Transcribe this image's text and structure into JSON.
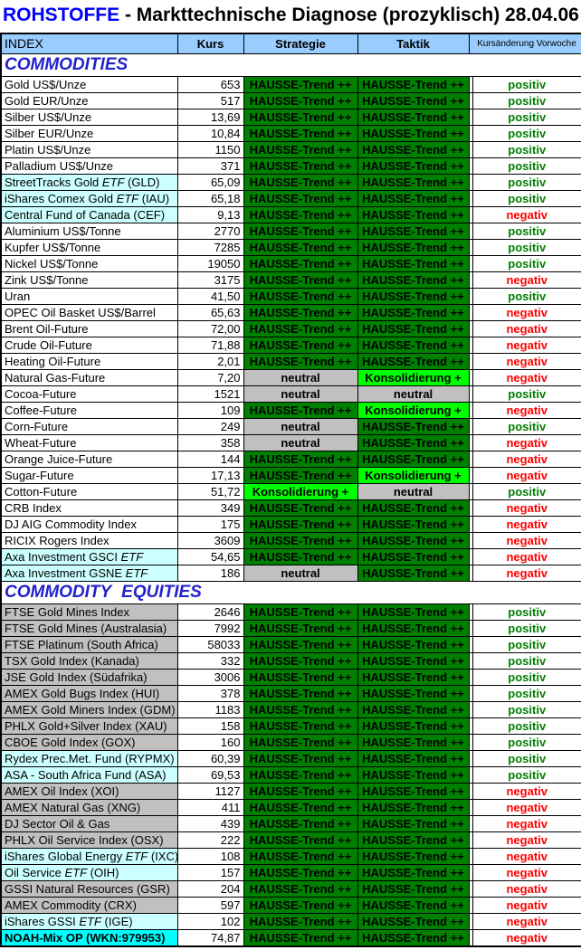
{
  "title": {
    "highlight": "ROHSTOFFE",
    "rest": " - Markttechnische Diagnose (prozyklisch) 28.04.06"
  },
  "header": {
    "index": "INDEX",
    "kurs": "Kurs",
    "strategie": "Strategie",
    "taktik": "Taktik",
    "vorwoche": "Kursänderung Vorwoche"
  },
  "colors": {
    "title_accent": "#0000FF",
    "section_label": "#2222CC",
    "header_bg": "#99CCFF",
    "hausse_bg": "#008000",
    "konsolidierung_bg": "#00FF00",
    "neutral_bg": "#C0C0C0",
    "etf_row_bg": "#CCFFFF",
    "equity_row_bg": "#C0C0C0",
    "noah_row_bg": "#00FFFF",
    "positiv": "#008000",
    "negativ": "#FF0000"
  },
  "status_styles": {
    "HAUSSE-Trend ++": "hausse",
    "neutral": "neutral",
    "Konsolidierung +": "konsol"
  },
  "change_styles": {
    "positiv": "pos",
    "negativ": "neg"
  },
  "sections": [
    {
      "label": "COMMODITIES",
      "rows": [
        {
          "name": "Gold US$/Unze",
          "bg": "plain",
          "kurs": "653",
          "strategie": "HAUSSE-Trend ++",
          "taktik": "HAUSSE-Trend ++",
          "vorwoche": "positiv"
        },
        {
          "name": "Gold EUR/Unze",
          "bg": "plain",
          "kurs": "517",
          "strategie": "HAUSSE-Trend ++",
          "taktik": "HAUSSE-Trend ++",
          "vorwoche": "positiv"
        },
        {
          "name": "Silber US$/Unze",
          "bg": "plain",
          "kurs": "13,69",
          "strategie": "HAUSSE-Trend ++",
          "taktik": "HAUSSE-Trend ++",
          "vorwoche": "positiv"
        },
        {
          "name": "Silber EUR/Unze",
          "bg": "plain",
          "kurs": "10,84",
          "strategie": "HAUSSE-Trend ++",
          "taktik": "HAUSSE-Trend ++",
          "vorwoche": "positiv"
        },
        {
          "name": "Platin US$/Unze",
          "bg": "plain",
          "kurs": "1150",
          "strategie": "HAUSSE-Trend ++",
          "taktik": "HAUSSE-Trend ++",
          "vorwoche": "positiv"
        },
        {
          "name": "Palladium US$/Unze",
          "bg": "plain",
          "kurs": "371",
          "strategie": "HAUSSE-Trend ++",
          "taktik": "HAUSSE-Trend ++",
          "vorwoche": "positiv"
        },
        {
          "name": "StreetTracks Gold ETF (GLD)",
          "bg": "etf",
          "kurs": "65,09",
          "strategie": "HAUSSE-Trend ++",
          "taktik": "HAUSSE-Trend ++",
          "vorwoche": "positiv"
        },
        {
          "name": "iShares Comex Gold ETF (IAU)",
          "bg": "etf",
          "kurs": "65,18",
          "strategie": "HAUSSE-Trend ++",
          "taktik": "HAUSSE-Trend ++",
          "vorwoche": "positiv"
        },
        {
          "name": "Central Fund of Canada (CEF)",
          "bg": "etf",
          "kurs": "9,13",
          "strategie": "HAUSSE-Trend ++",
          "taktik": "HAUSSE-Trend ++",
          "vorwoche": "negativ"
        },
        {
          "name": "Aluminium US$/Tonne",
          "bg": "plain",
          "kurs": "2770",
          "strategie": "HAUSSE-Trend ++",
          "taktik": "HAUSSE-Trend ++",
          "vorwoche": "positiv"
        },
        {
          "name": "Kupfer US$/Tonne",
          "bg": "plain",
          "kurs": "7285",
          "strategie": "HAUSSE-Trend ++",
          "taktik": "HAUSSE-Trend ++",
          "vorwoche": "positiv"
        },
        {
          "name": "Nickel US$/Tonne",
          "bg": "plain",
          "kurs": "19050",
          "strategie": "HAUSSE-Trend ++",
          "taktik": "HAUSSE-Trend ++",
          "vorwoche": "positiv"
        },
        {
          "name": "Zink US$/Tonne",
          "bg": "plain",
          "kurs": "3175",
          "strategie": "HAUSSE-Trend ++",
          "taktik": "HAUSSE-Trend ++",
          "vorwoche": "negativ"
        },
        {
          "name": "Uran",
          "bg": "plain",
          "kurs": "41,50",
          "strategie": "HAUSSE-Trend ++",
          "taktik": "HAUSSE-Trend ++",
          "vorwoche": "positiv"
        },
        {
          "name": "OPEC Oil Basket US$/Barrel",
          "bg": "plain",
          "kurs": "65,63",
          "strategie": "HAUSSE-Trend ++",
          "taktik": "HAUSSE-Trend ++",
          "vorwoche": "negativ"
        },
        {
          "name": "Brent Oil-Future",
          "bg": "plain",
          "kurs": "72,00",
          "strategie": "HAUSSE-Trend ++",
          "taktik": "HAUSSE-Trend ++",
          "vorwoche": "negativ"
        },
        {
          "name": "Crude Oil-Future",
          "bg": "plain",
          "kurs": "71,88",
          "strategie": "HAUSSE-Trend ++",
          "taktik": "HAUSSE-Trend ++",
          "vorwoche": "negativ"
        },
        {
          "name": "Heating Oil-Future",
          "bg": "plain",
          "kurs": "2,01",
          "strategie": "HAUSSE-Trend ++",
          "taktik": "HAUSSE-Trend ++",
          "vorwoche": "negativ"
        },
        {
          "name": "Natural Gas-Future",
          "bg": "plain",
          "kurs": "7,20",
          "strategie": "neutral",
          "taktik": "Konsolidierung +",
          "vorwoche": "negativ"
        },
        {
          "name": "Cocoa-Future",
          "bg": "plain",
          "kurs": "1521",
          "strategie": "neutral",
          "taktik": "neutral",
          "vorwoche": "positiv"
        },
        {
          "name": "Coffee-Future",
          "bg": "plain",
          "kurs": "109",
          "strategie": "HAUSSE-Trend ++",
          "taktik": "Konsolidierung +",
          "vorwoche": "negativ"
        },
        {
          "name": "Corn-Future",
          "bg": "plain",
          "kurs": "249",
          "strategie": "neutral",
          "taktik": "HAUSSE-Trend ++",
          "vorwoche": "positiv"
        },
        {
          "name": "Wheat-Future",
          "bg": "plain",
          "kurs": "358",
          "strategie": "neutral",
          "taktik": "HAUSSE-Trend ++",
          "vorwoche": "negativ"
        },
        {
          "name": "Orange Juice-Future",
          "bg": "plain",
          "kurs": "144",
          "strategie": "HAUSSE-Trend ++",
          "taktik": "HAUSSE-Trend ++",
          "vorwoche": "negativ"
        },
        {
          "name": "Sugar-Future",
          "bg": "plain",
          "kurs": "17,13",
          "strategie": "HAUSSE-Trend ++",
          "taktik": "Konsolidierung +",
          "vorwoche": "negativ"
        },
        {
          "name": "Cotton-Future",
          "bg": "plain",
          "kurs": "51,72",
          "strategie": "Konsolidierung +",
          "taktik": "neutral",
          "vorwoche": "positiv"
        },
        {
          "name": "CRB Index",
          "bg": "plain",
          "kurs": "349",
          "strategie": "HAUSSE-Trend ++",
          "taktik": "HAUSSE-Trend ++",
          "vorwoche": "negativ"
        },
        {
          "name": "DJ AIG Commodity Index",
          "bg": "plain",
          "kurs": "175",
          "strategie": "HAUSSE-Trend ++",
          "taktik": "HAUSSE-Trend ++",
          "vorwoche": "negativ"
        },
        {
          "name": "RICIX Rogers Index",
          "bg": "plain",
          "kurs": "3609",
          "strategie": "HAUSSE-Trend ++",
          "taktik": "HAUSSE-Trend ++",
          "vorwoche": "negativ"
        },
        {
          "name": "Axa Investment GSCI ETF",
          "bg": "etf",
          "kurs": "54,65",
          "strategie": "HAUSSE-Trend ++",
          "taktik": "HAUSSE-Trend ++",
          "vorwoche": "negativ"
        },
        {
          "name": "Axa Investment GSNE ETF",
          "bg": "etf",
          "kurs": "186",
          "strategie": "neutral",
          "taktik": "HAUSSE-Trend ++",
          "vorwoche": "negativ"
        }
      ]
    },
    {
      "label": "COMMODITY EQUITIES",
      "rows": [
        {
          "name": "FTSE Gold Mines Index",
          "bg": "equity",
          "kurs": "2646",
          "strategie": "HAUSSE-Trend ++",
          "taktik": "HAUSSE-Trend ++",
          "vorwoche": "positiv"
        },
        {
          "name": "FTSE Gold Mines (Australasia)",
          "bg": "equity",
          "kurs": "7992",
          "strategie": "HAUSSE-Trend ++",
          "taktik": "HAUSSE-Trend ++",
          "vorwoche": "positiv"
        },
        {
          "name": "FTSE Platinum (South Africa)",
          "bg": "equity",
          "kurs": "58033",
          "strategie": "HAUSSE-Trend ++",
          "taktik": "HAUSSE-Trend ++",
          "vorwoche": "positiv"
        },
        {
          "name": "TSX Gold Index (Kanada)",
          "bg": "equity",
          "kurs": "332",
          "strategie": "HAUSSE-Trend ++",
          "taktik": "HAUSSE-Trend ++",
          "vorwoche": "positiv"
        },
        {
          "name": "JSE Gold Index (Südafrika)",
          "bg": "equity",
          "kurs": "3006",
          "strategie": "HAUSSE-Trend ++",
          "taktik": "HAUSSE-Trend ++",
          "vorwoche": "positiv"
        },
        {
          "name": "AMEX Gold Bugs Index (HUI)",
          "bg": "equity",
          "kurs": "378",
          "strategie": "HAUSSE-Trend ++",
          "taktik": "HAUSSE-Trend ++",
          "vorwoche": "positiv"
        },
        {
          "name": "AMEX Gold Miners Index (GDM)",
          "bg": "equity",
          "kurs": "1183",
          "strategie": "HAUSSE-Trend ++",
          "taktik": "HAUSSE-Trend ++",
          "vorwoche": "positiv"
        },
        {
          "name": "PHLX Gold+Silver Index (XAU)",
          "bg": "equity",
          "kurs": "158",
          "strategie": "HAUSSE-Trend ++",
          "taktik": "HAUSSE-Trend ++",
          "vorwoche": "positiv"
        },
        {
          "name": "CBOE Gold Index (GOX)",
          "bg": "equity",
          "kurs": "160",
          "strategie": "HAUSSE-Trend ++",
          "taktik": "HAUSSE-Trend ++",
          "vorwoche": "positiv"
        },
        {
          "name": "Rydex Prec.Met. Fund (RYPMX)",
          "bg": "etf",
          "kurs": "60,39",
          "strategie": "HAUSSE-Trend ++",
          "taktik": "HAUSSE-Trend ++",
          "vorwoche": "positiv"
        },
        {
          "name": "ASA - South Africa Fund (ASA)",
          "bg": "etf",
          "kurs": "69,53",
          "strategie": "HAUSSE-Trend ++",
          "taktik": "HAUSSE-Trend ++",
          "vorwoche": "positiv"
        },
        {
          "name": "AMEX Oil Index (XOI)",
          "bg": "equity",
          "kurs": "1127",
          "strategie": "HAUSSE-Trend ++",
          "taktik": "HAUSSE-Trend ++",
          "vorwoche": "negativ"
        },
        {
          "name": "AMEX Natural Gas (XNG)",
          "bg": "equity",
          "kurs": "411",
          "strategie": "HAUSSE-Trend ++",
          "taktik": "HAUSSE-Trend ++",
          "vorwoche": "negativ"
        },
        {
          "name": "DJ Sector Oil & Gas",
          "bg": "equity",
          "kurs": "439",
          "strategie": "HAUSSE-Trend ++",
          "taktik": "HAUSSE-Trend ++",
          "vorwoche": "negativ"
        },
        {
          "name": "PHLX Oil Service Index (OSX)",
          "bg": "equity",
          "kurs": "222",
          "strategie": "HAUSSE-Trend ++",
          "taktik": "HAUSSE-Trend ++",
          "vorwoche": "negativ"
        },
        {
          "name": "iShares Global Energy ETF (IXC)",
          "bg": "etf",
          "kurs": "108",
          "strategie": "HAUSSE-Trend ++",
          "taktik": "HAUSSE-Trend ++",
          "vorwoche": "negativ"
        },
        {
          "name": "Oil Service ETF (OIH)",
          "bg": "etf",
          "kurs": "157",
          "strategie": "HAUSSE-Trend ++",
          "taktik": "HAUSSE-Trend ++",
          "vorwoche": "negativ"
        },
        {
          "name": "GSSI Natural Resources (GSR)",
          "bg": "equity",
          "kurs": "204",
          "strategie": "HAUSSE-Trend ++",
          "taktik": "HAUSSE-Trend ++",
          "vorwoche": "negativ"
        },
        {
          "name": "AMEX Commodity (CRX)",
          "bg": "equity",
          "kurs": "597",
          "strategie": "HAUSSE-Trend ++",
          "taktik": "HAUSSE-Trend ++",
          "vorwoche": "negativ"
        },
        {
          "name": "iShares GSSI ETF (IGE)",
          "bg": "etf",
          "kurs": "102",
          "strategie": "HAUSSE-Trend ++",
          "taktik": "HAUSSE-Trend ++",
          "vorwoche": "negativ"
        },
        {
          "name": "NOAH-Mix OP (WKN:979953)",
          "bg": "highlight",
          "kurs": "74,87",
          "strategie": "HAUSSE-Trend ++",
          "taktik": "HAUSSE-Trend ++",
          "vorwoche": "negativ"
        }
      ]
    }
  ]
}
